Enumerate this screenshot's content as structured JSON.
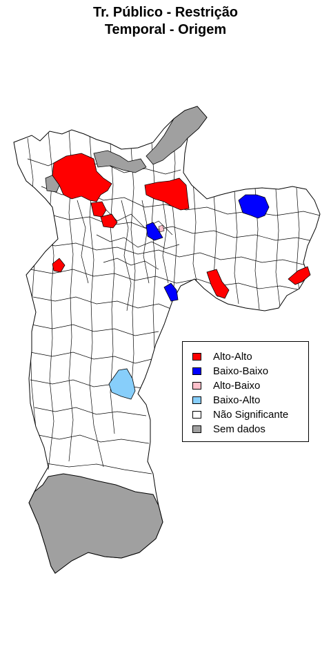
{
  "title": {
    "line1": "Tr. Público - Restrição",
    "line2": "Temporal - Origem"
  },
  "colors": {
    "alto_alto": "#ff0000",
    "baixo_baixo": "#0000ff",
    "alto_baixo": "#ffc0cb",
    "baixo_alto": "#87cefa",
    "nao_significante": "#ffffff",
    "sem_dados": "#a0a0a0",
    "border": "#000000"
  },
  "legend": {
    "items": [
      {
        "label": "Alto-Alto",
        "color": "#ff0000"
      },
      {
        "label": "Baixo-Baixo",
        "color": "#0000ff"
      },
      {
        "label": "Alto-Baixo",
        "color": "#ffc0cb"
      },
      {
        "label": "Baixo-Alto",
        "color": "#87cefa"
      },
      {
        "label": "Não Significante",
        "color": "#ffffff"
      },
      {
        "label": "Sem dados",
        "color": "#a0a0a0"
      }
    ]
  }
}
